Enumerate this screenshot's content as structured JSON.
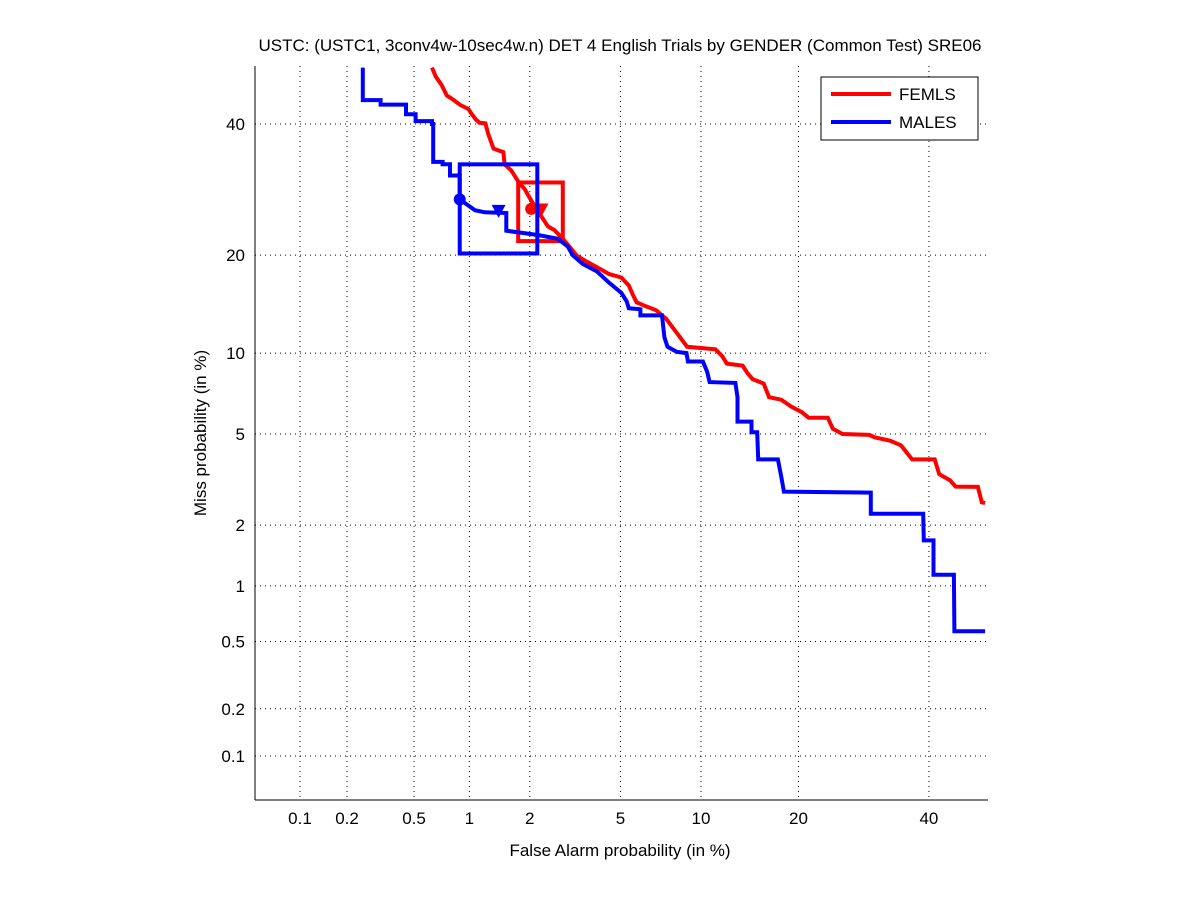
{
  "chart_data": {
    "type": "line",
    "scale": "normal-deviate (DET)",
    "title": "USTC: (USTC1, 3conv4w-10sec4w.n) DET 4 English Trials by GENDER (Common Test) SRE06",
    "xlabel": "False Alarm probability (in %)",
    "ylabel": "Miss probability (in %)",
    "xlim": [
      0.05,
      50
    ],
    "ylim": [
      0.05,
      50
    ],
    "xticks": [
      0.1,
      0.2,
      0.5,
      1,
      2,
      5,
      10,
      20,
      40
    ],
    "xtick_labels": [
      "0.1",
      "0.2",
      "0.5",
      "1",
      "2",
      "5",
      "10",
      "20",
      "40"
    ],
    "yticks": [
      0.1,
      0.2,
      0.5,
      1,
      2,
      5,
      10,
      20,
      40
    ],
    "ytick_labels": [
      "0.1",
      "0.2",
      "0.5",
      "1",
      "2",
      "5",
      "10",
      "20",
      "40"
    ],
    "grid": true,
    "legend_position": "top-right",
    "series": [
      {
        "name": "FEMLS",
        "color": "#ff0000",
        "points": [
          [
            0.63,
            50
          ],
          [
            0.66,
            48.4
          ],
          [
            0.71,
            46.9
          ],
          [
            0.76,
            45.0
          ],
          [
            0.81,
            44.4
          ],
          [
            0.89,
            43.4
          ],
          [
            0.99,
            42.6
          ],
          [
            1.03,
            41.7
          ],
          [
            1.08,
            40.8
          ],
          [
            1.13,
            40.2
          ],
          [
            1.21,
            40.1
          ],
          [
            1.25,
            38.3
          ],
          [
            1.33,
            35.8
          ],
          [
            1.49,
            35.2
          ],
          [
            1.51,
            33.2
          ],
          [
            1.63,
            32.2
          ],
          [
            1.79,
            30.1
          ],
          [
            1.89,
            29.3
          ],
          [
            2.0,
            27.9
          ],
          [
            2.12,
            26.6
          ],
          [
            2.29,
            25.0
          ],
          [
            2.43,
            23.8
          ],
          [
            2.6,
            23.3
          ],
          [
            2.84,
            22.1
          ],
          [
            3.04,
            21.1
          ],
          [
            3.28,
            19.9
          ],
          [
            3.66,
            19.1
          ],
          [
            4.0,
            18.5
          ],
          [
            4.5,
            17.7
          ],
          [
            5.04,
            17.3
          ],
          [
            5.4,
            16.4
          ],
          [
            5.6,
            15.4
          ],
          [
            5.8,
            14.6
          ],
          [
            6.3,
            14.2
          ],
          [
            6.9,
            13.8
          ],
          [
            7.25,
            13.3
          ],
          [
            7.5,
            13.0
          ],
          [
            8.2,
            11.7
          ],
          [
            8.95,
            10.5
          ],
          [
            11.2,
            10.3
          ],
          [
            11.8,
            9.75
          ],
          [
            12.2,
            9.2
          ],
          [
            13.7,
            9.05
          ],
          [
            14.2,
            8.5
          ],
          [
            14.7,
            8.1
          ],
          [
            15.9,
            7.8
          ],
          [
            16.5,
            6.95
          ],
          [
            17.9,
            6.8
          ],
          [
            19.1,
            6.4
          ],
          [
            20.4,
            6.1
          ],
          [
            21.3,
            5.8
          ],
          [
            23.9,
            5.8
          ],
          [
            24.6,
            5.25
          ],
          [
            26.0,
            5.0
          ],
          [
            30.1,
            4.96
          ],
          [
            30.9,
            4.85
          ],
          [
            33.4,
            4.7
          ],
          [
            35.2,
            4.5
          ],
          [
            37.1,
            3.93
          ],
          [
            41.0,
            3.93
          ],
          [
            41.8,
            3.4
          ],
          [
            43.7,
            3.2
          ],
          [
            44.7,
            3.0
          ],
          [
            48.7,
            2.99
          ],
          [
            49.4,
            2.55
          ],
          [
            50,
            2.53
          ]
        ],
        "confidence_box": {
          "fa": [
            1.76,
            2.84
          ],
          "miss": [
            21.8,
            30.3
          ]
        },
        "markers": [
          {
            "shape": "circle",
            "fa": 2.03,
            "miss": 26.3
          },
          {
            "shape": "triangle",
            "fa": 2.27,
            "miss": 26.2
          }
        ]
      },
      {
        "name": "MALES",
        "color": "#0000ff",
        "points": [
          [
            0.25,
            50
          ],
          [
            0.25,
            44.2
          ],
          [
            0.32,
            44.2
          ],
          [
            0.32,
            43.4
          ],
          [
            0.45,
            43.4
          ],
          [
            0.45,
            41.7
          ],
          [
            0.51,
            41.7
          ],
          [
            0.51,
            40.5
          ],
          [
            0.63,
            40.5
          ],
          [
            0.63,
            40
          ],
          [
            0.64,
            40
          ],
          [
            0.64,
            33.6
          ],
          [
            0.72,
            33.6
          ],
          [
            0.72,
            33.2
          ],
          [
            0.79,
            33.2
          ],
          [
            0.79,
            31.4
          ],
          [
            0.89,
            31.4
          ],
          [
            0.89,
            27.7
          ],
          [
            1.07,
            26.1
          ],
          [
            1.2,
            25.8
          ],
          [
            1.54,
            25.7
          ],
          [
            1.54,
            23.2
          ],
          [
            2.2,
            22.6
          ],
          [
            2.7,
            22.1
          ],
          [
            2.99,
            21.1
          ],
          [
            3.14,
            20.0
          ],
          [
            3.48,
            18.9
          ],
          [
            4.0,
            18.0
          ],
          [
            4.5,
            16.7
          ],
          [
            5.04,
            15.6
          ],
          [
            5.3,
            14.7
          ],
          [
            5.4,
            14.0
          ],
          [
            6.0,
            13.9
          ],
          [
            6.0,
            13.3
          ],
          [
            7.25,
            13.3
          ],
          [
            7.4,
            11.3
          ],
          [
            7.6,
            10.5
          ],
          [
            8.2,
            10.1
          ],
          [
            8.9,
            10.0
          ],
          [
            9.0,
            9.35
          ],
          [
            10.15,
            9.35
          ],
          [
            10.5,
            8.6
          ],
          [
            10.7,
            7.9
          ],
          [
            13.0,
            7.85
          ],
          [
            13.2,
            6.95
          ],
          [
            13.2,
            5.6
          ],
          [
            14.6,
            5.6
          ],
          [
            14.6,
            5.08
          ],
          [
            15.2,
            5.08
          ],
          [
            15.3,
            3.93
          ],
          [
            17.5,
            3.93
          ],
          [
            17.9,
            3.31
          ],
          [
            18.2,
            2.85
          ],
          [
            30.3,
            2.82
          ],
          [
            30.3,
            2.26
          ],
          [
            39.0,
            2.26
          ],
          [
            39.1,
            1.69
          ],
          [
            40.8,
            1.69
          ],
          [
            40.8,
            1.14
          ],
          [
            44.4,
            1.14
          ],
          [
            44.5,
            0.57
          ],
          [
            50,
            0.57
          ]
        ],
        "confidence_box": {
          "fa": [
            0.89,
            2.17
          ],
          "miss": [
            20.2,
            33.2
          ]
        },
        "markers": [
          {
            "shape": "circle",
            "fa": 0.89,
            "miss": 27.7
          },
          {
            "shape": "triangle",
            "fa": 1.41,
            "miss": 26.0
          }
        ]
      }
    ]
  }
}
